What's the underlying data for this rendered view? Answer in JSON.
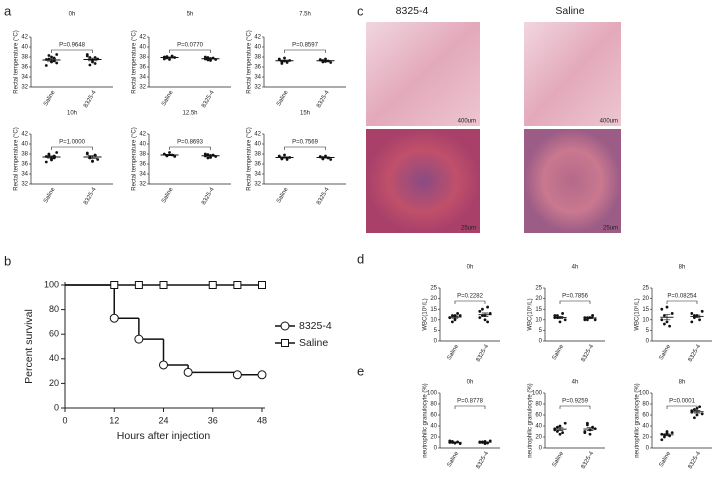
{
  "panels": [
    "a",
    "b",
    "c",
    "d",
    "e"
  ],
  "histology": {
    "columns": [
      "8325-4",
      "Saline"
    ],
    "scale_bars": [
      "400um",
      "400um",
      "25um",
      "25um"
    ]
  },
  "chart_data": [
    {
      "type": "dotplot",
      "title": "0h",
      "ylabel": "Rectal temperature (°C)",
      "annotation": "P=0.9648",
      "categories": [
        "Saline",
        "8325-4"
      ],
      "values": [
        [
          37.5,
          38.3,
          37.0,
          37.8,
          36.8,
          36.3,
          37.6,
          38.0,
          37.2,
          38.5
        ],
        [
          38.5,
          37.9,
          37.3,
          36.7,
          37.6,
          38.2,
          36.4,
          37.0,
          37.9
        ]
      ],
      "means": [
        37.4,
        37.5
      ],
      "errors": [
        0.22,
        0.25
      ],
      "ylim": [
        32,
        42
      ],
      "yticks": [
        32,
        34,
        36,
        38,
        40,
        42
      ],
      "color": "#111"
    },
    {
      "type": "dotplot",
      "title": "5h",
      "ylabel": "Rectal temperature (°C)",
      "annotation": "P=0.0770",
      "categories": [
        "Saline",
        "8325-4"
      ],
      "values": [
        [
          38.0,
          37.8,
          37.5,
          38.2,
          37.9,
          37.6,
          38.1
        ],
        [
          37.6,
          37.9,
          37.3,
          37.8,
          37.5,
          38.0,
          37.4,
          37.7
        ]
      ],
      "means": [
        37.9,
        37.65
      ],
      "errors": [
        0.1,
        0.09
      ],
      "ylim": [
        32,
        42
      ],
      "yticks": [
        32,
        34,
        36,
        38,
        40,
        42
      ],
      "color": "#111"
    },
    {
      "type": "dotplot",
      "title": "7.5h",
      "ylabel": "Rectal temperature (°C)",
      "annotation": "P=0.8597",
      "categories": [
        "Saline",
        "8325-4"
      ],
      "values": [
        [
          37.5,
          37.0,
          37.8,
          36.9,
          37.3,
          37.6,
          36.7,
          37.2
        ],
        [
          37.4,
          37.0,
          37.6,
          37.2,
          36.9,
          37.5,
          37.3,
          37.1
        ]
      ],
      "means": [
        37.25,
        37.25
      ],
      "errors": [
        0.14,
        0.08
      ],
      "ylim": [
        32,
        42
      ],
      "yticks": [
        32,
        34,
        36,
        38,
        40,
        42
      ],
      "color": "#111"
    },
    {
      "type": "dotplot",
      "title": "10h",
      "ylabel": "Rectal temperature (°C)",
      "annotation": "P=1.0000",
      "categories": [
        "Saline",
        "8325-4"
      ],
      "values": [
        [
          37.5,
          38.0,
          36.8,
          37.2,
          38.3,
          36.4,
          37.8,
          37.0,
          37.6
        ],
        [
          38.2,
          37.4,
          36.6,
          37.8,
          36.9,
          38.0,
          37.2,
          36.5
        ]
      ],
      "means": [
        37.4,
        37.4
      ],
      "errors": [
        0.2,
        0.25
      ],
      "ylim": [
        32,
        42
      ],
      "yticks": [
        32,
        34,
        36,
        38,
        40,
        42
      ],
      "color": "#111"
    },
    {
      "type": "dotplot",
      "title": "12.5h",
      "ylabel": "Rectal temperature (°C)",
      "annotation": "P=0.8693",
      "categories": [
        "Saline",
        "8325-4"
      ],
      "values": [
        [
          38.0,
          37.6,
          38.3,
          37.8,
          37.5
        ],
        [
          37.6,
          37.9,
          37.3,
          37.8,
          37.5,
          38.0,
          37.2,
          37.7
        ]
      ],
      "means": [
        37.8,
        37.65
      ],
      "errors": [
        0.14,
        0.1
      ],
      "ylim": [
        32,
        42
      ],
      "yticks": [
        32,
        34,
        36,
        38,
        40,
        42
      ],
      "color": "#111"
    },
    {
      "type": "dotplot",
      "title": "15h",
      "ylabel": "Rectal temperature (°C)",
      "annotation": "P=0.7569",
      "categories": [
        "Saline",
        "8325-4"
      ],
      "values": [
        [
          37.5,
          37.0,
          37.8,
          36.9,
          37.3,
          37.6,
          37.1
        ],
        [
          37.4,
          37.0,
          37.6,
          37.2,
          36.9,
          37.5,
          37.3
        ]
      ],
      "means": [
        37.3,
        37.3
      ],
      "errors": [
        0.12,
        0.1
      ],
      "ylim": [
        32,
        42
      ],
      "yticks": [
        32,
        34,
        36,
        38,
        40,
        42
      ],
      "color": "#111"
    },
    {
      "type": "step",
      "xlabel": "Hours after injection",
      "ylabel": "Percent survival",
      "xlim": [
        0,
        48
      ],
      "xticks": [
        0,
        12,
        24,
        36,
        48
      ],
      "ylim": [
        0,
        100
      ],
      "yticks": [
        0,
        20,
        40,
        60,
        80,
        100
      ],
      "legend": "right",
      "series": [
        {
          "name": "8325-4",
          "color": "#111",
          "marker": "circle",
          "x": [
            0,
            12,
            18,
            24,
            30,
            42,
            48
          ],
          "values": [
            100,
            73,
            56,
            35,
            29,
            27,
            27
          ]
        },
        {
          "name": "Saline",
          "color": "#111",
          "marker": "square",
          "x": [
            0,
            12,
            18,
            24,
            36,
            42,
            48
          ],
          "values": [
            100,
            100,
            100,
            100,
            100,
            100,
            100
          ]
        }
      ]
    },
    {
      "type": "dotplot",
      "title": "0h",
      "ylabel": "WBC(10⁹/L)",
      "annotation": "P=0.2282",
      "categories": [
        "Saline",
        "8325-4"
      ],
      "values": [
        [
          11,
          12,
          10,
          13,
          12,
          11,
          9,
          12
        ],
        [
          14,
          12,
          10,
          16,
          13,
          11,
          15,
          12,
          9
        ]
      ],
      "means": [
        11.3,
        12.4
      ],
      "errors": [
        0.5,
        0.8
      ],
      "ylim": [
        0,
        25
      ],
      "yticks": [
        0,
        5,
        10,
        15,
        20,
        25
      ],
      "color": "#111"
    },
    {
      "type": "dotplot",
      "title": "4h",
      "ylabel": "WBC(10⁹/L)",
      "annotation": "P=0.7856",
      "categories": [
        "Saline",
        "8325-4"
      ],
      "values": [
        [
          11,
          12,
          9,
          13,
          10,
          12,
          11
        ],
        [
          10,
          11,
          11,
          12,
          10,
          11,
          10,
          11,
          12
        ]
      ],
      "means": [
        11.1,
        10.9
      ],
      "errors": [
        0.5,
        0.3
      ],
      "ylim": [
        0,
        25
      ],
      "yticks": [
        0,
        5,
        10,
        15,
        20,
        25
      ],
      "color": "#111"
    },
    {
      "type": "dotplot",
      "title": "8h",
      "ylabel": "WBC(10⁹/L)",
      "annotation": "P=0.08254",
      "categories": [
        "Saline",
        "8325-4"
      ],
      "values": [
        [
          15,
          12,
          9,
          7,
          13,
          10,
          8,
          16
        ],
        [
          13,
          11,
          12,
          10,
          14,
          9,
          12
        ]
      ],
      "means": [
        11.2,
        11.6
      ],
      "errors": [
        1.2,
        0.6
      ],
      "ylim": [
        0,
        25
      ],
      "yticks": [
        0,
        5,
        10,
        15,
        20,
        25
      ],
      "color": "#111"
    },
    {
      "type": "dotplot",
      "title": "0h",
      "ylabel": "neutrophilic granulocyte (%)",
      "annotation": "P=0.8778",
      "categories": [
        "Saline",
        "8325-4"
      ],
      "values": [
        [
          10,
          12,
          9,
          11,
          8,
          13,
          10,
          9
        ],
        [
          11,
          10,
          12,
          9,
          13,
          10,
          11,
          8
        ]
      ],
      "means": [
        10.3,
        10.5
      ],
      "errors": [
        0.6,
        0.6
      ],
      "ylim": [
        0,
        100
      ],
      "yticks": [
        0,
        20,
        40,
        60,
        80,
        100
      ],
      "color": "#111"
    },
    {
      "type": "dotplot",
      "title": "4h",
      "ylabel": "neutrophilic granulocyte (%)",
      "annotation": "P=0.9259",
      "categories": [
        "Saline",
        "8325-4"
      ],
      "values": [
        [
          35,
          30,
          40,
          28,
          45,
          33,
          38,
          25
        ],
        [
          30,
          42,
          25,
          38,
          35,
          28,
          45,
          33
        ]
      ],
      "means": [
        34.3,
        34.5
      ],
      "errors": [
        2.3,
        2.4
      ],
      "ylim": [
        0,
        100
      ],
      "yticks": [
        0,
        20,
        40,
        60,
        80,
        100
      ],
      "color": "#111"
    },
    {
      "type": "dotplot",
      "title": "8h",
      "ylabel": "neutrophilic granulocyte (%)",
      "annotation": "P=0.0001",
      "categories": [
        "Saline",
        "8325-4"
      ],
      "values": [
        [
          25,
          20,
          30,
          22,
          28,
          15,
          24,
          27
        ],
        [
          65,
          70,
          60,
          75,
          62,
          68,
          55,
          72
        ]
      ],
      "means": [
        23.9,
        65.9
      ],
      "errors": [
        1.7,
        2.3
      ],
      "ylim": [
        0,
        100
      ],
      "yticks": [
        0,
        20,
        40,
        60,
        80,
        100
      ],
      "color": "#111"
    }
  ]
}
